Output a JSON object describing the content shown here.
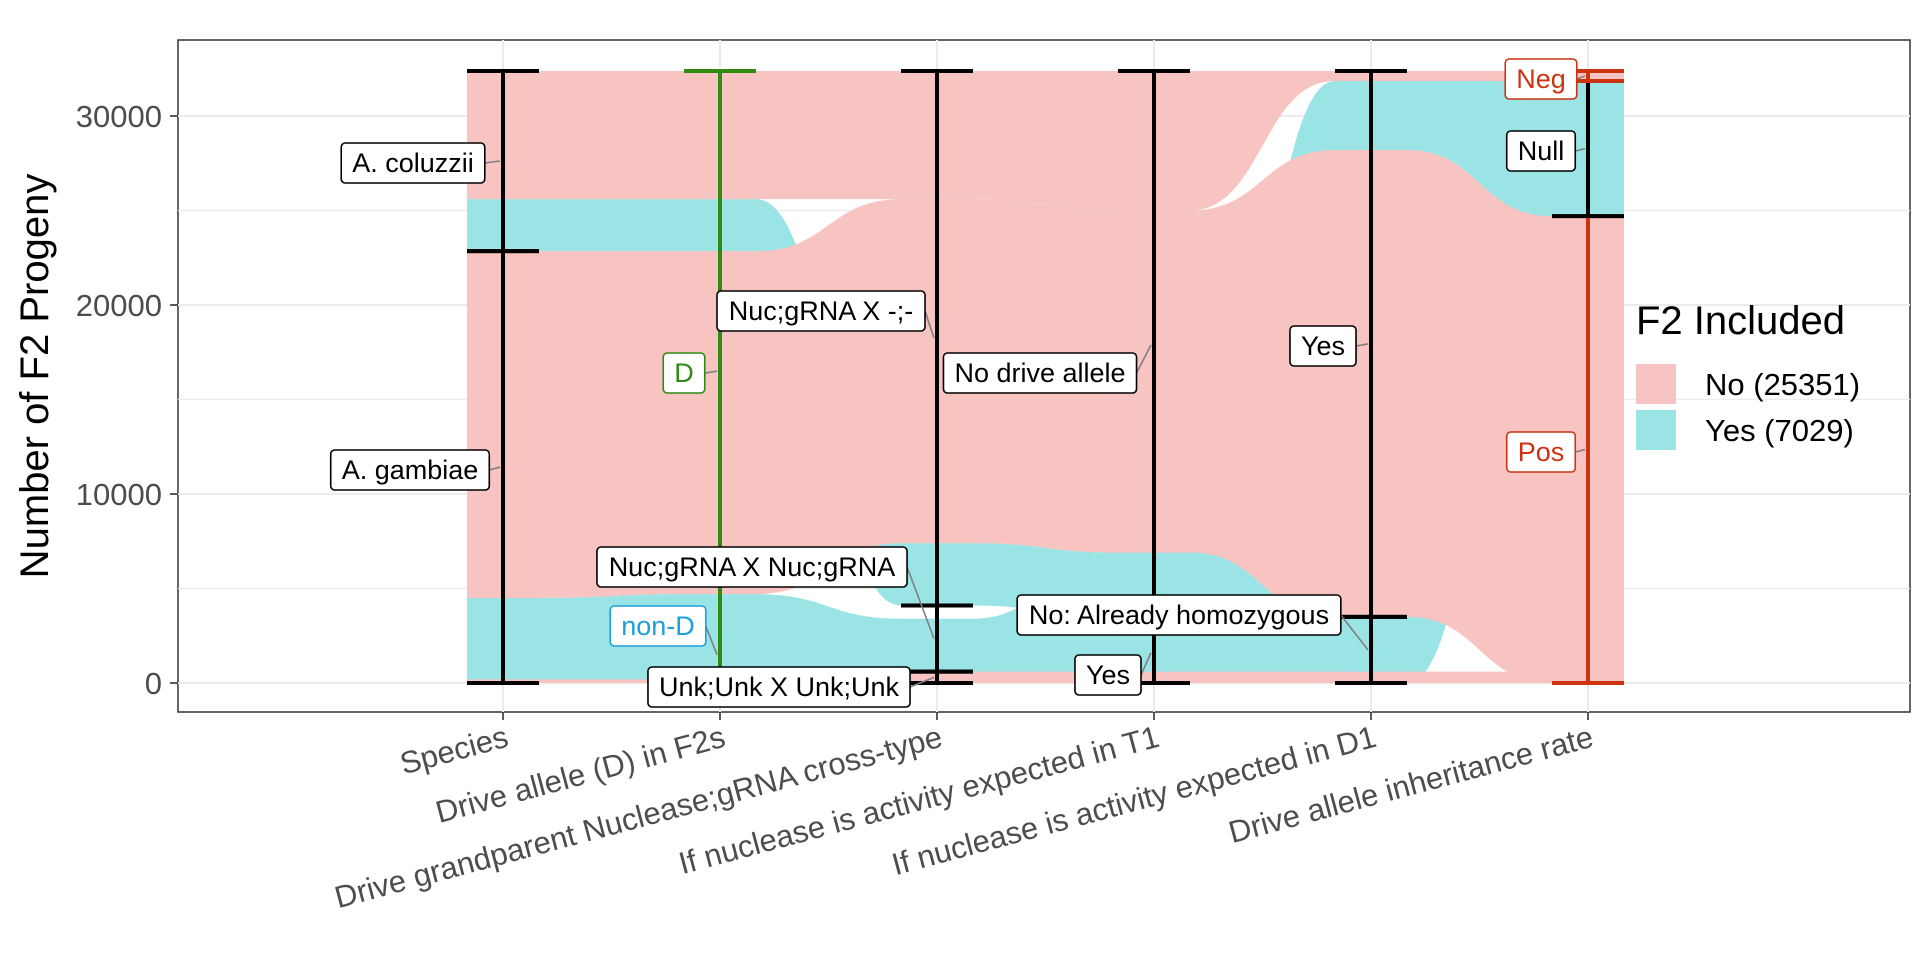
{
  "chart_data": {
    "type": "alluvial",
    "ylabel": "Number of F2 Progeny",
    "ylim": [
      -1500,
      34000
    ],
    "yticks": [
      0,
      10000,
      20000,
      30000
    ],
    "grid": true,
    "legend": {
      "title": "F2 Included",
      "position": "right",
      "entries": [
        {
          "label": "No (25351)",
          "color": "#f8c4c2"
        },
        {
          "label": "Yes (7029)",
          "color": "#9ae4e6"
        }
      ]
    },
    "axes": [
      {
        "label": "Species",
        "color": "#000000",
        "strata": [
          {
            "label": "A. gambiae",
            "from": 0,
            "to": 22850,
            "label_value": 11425
          },
          {
            "label": "A. coluzzii",
            "from": 22850,
            "to": 32380,
            "label_value": 27620
          }
        ]
      },
      {
        "label": "Drive allele (D) in F2s",
        "color": "#2e8b10",
        "strata": [
          {
            "label": "non-D",
            "from": 0,
            "to": 200,
            "label_value": 1500,
            "color": "#1e9fdc"
          },
          {
            "label": "D",
            "from": 200,
            "to": 32380,
            "label_value": 16500,
            "color": "#2e8b10"
          }
        ]
      },
      {
        "label": "Drive grandparent Nuclease;gRNA cross-type",
        "color": "#000000",
        "strata": [
          {
            "label": "Unk;Unk X Unk;Unk",
            "from": 0,
            "to": 600,
            "label_value": 300
          },
          {
            "label": "Nuc;gRNA X Nuc;gRNA",
            "from": 600,
            "to": 4100,
            "label_value": 2350
          },
          {
            "label": "Nuc;gRNA X -;-",
            "from": 4100,
            "to": 32380,
            "label_value": 18240
          }
        ]
      },
      {
        "label": "If nuclease is activity expected in T1",
        "color": "#000000",
        "strata": [
          {
            "label": "Yes",
            "from": 0,
            "to": 3400,
            "label_value": 1600
          },
          {
            "label": "No drive allele",
            "from": 3400,
            "to": 32380,
            "label_value": 17890
          }
        ]
      },
      {
        "label": "If nuclease is activity expected in D1",
        "color": "#000000",
        "strata": [
          {
            "label": "No: Already homozygous",
            "from": 0,
            "to": 3500,
            "label_value": 1750
          },
          {
            "label": "Yes",
            "from": 3500,
            "to": 32380,
            "label_value": 17940
          }
        ]
      },
      {
        "label": "Drive allele inheritance rate",
        "color": "#cc3311",
        "strata": [
          {
            "label": "Pos",
            "from": 0,
            "to": 24700,
            "label_value": 12350,
            "color": "#cc3311"
          },
          {
            "label": "Null",
            "from": 24700,
            "to": 31850,
            "label_value": 28270,
            "color": "#000000"
          },
          {
            "label": "Neg",
            "from": 31850,
            "to": 32380,
            "label_value": 32115,
            "color": "#cc3311"
          }
        ]
      }
    ],
    "flows": [
      {
        "group": "Yes",
        "levels": [
          [
            0,
            4500
          ],
          [
            200,
            4700
          ],
          [
            0,
            3400
          ],
          [
            0,
            6900
          ],
          [
            0,
            3500
          ],
          [
            24700,
            31850
          ]
        ]
      },
      {
        "group": "Yes",
        "levels": [
          [
            22850,
            25600
          ],
          [
            22850,
            25600
          ],
          [
            4100,
            7400
          ],
          [
            3400,
            6900
          ],
          [
            28200,
            31850
          ],
          [
            24700,
            31850
          ]
        ]
      },
      {
        "group": "No",
        "levels": [
          [
            4500,
            22850
          ],
          [
            4700,
            22850
          ],
          [
            7400,
            25600
          ],
          [
            6900,
            25000
          ],
          [
            3500,
            28200
          ],
          [
            0,
            24700
          ]
        ]
      },
      {
        "group": "No",
        "levels": [
          [
            25600,
            32380
          ],
          [
            25600,
            32380
          ],
          [
            25600,
            32380
          ],
          [
            25000,
            32380
          ],
          [
            31850,
            32380
          ],
          [
            31850,
            32380
          ]
        ]
      },
      {
        "group": "No",
        "levels": [
          [
            0,
            200
          ],
          [
            0,
            200
          ],
          [
            0,
            600
          ],
          [
            0,
            600
          ],
          [
            0,
            600
          ],
          [
            0,
            600
          ]
        ]
      }
    ]
  }
}
